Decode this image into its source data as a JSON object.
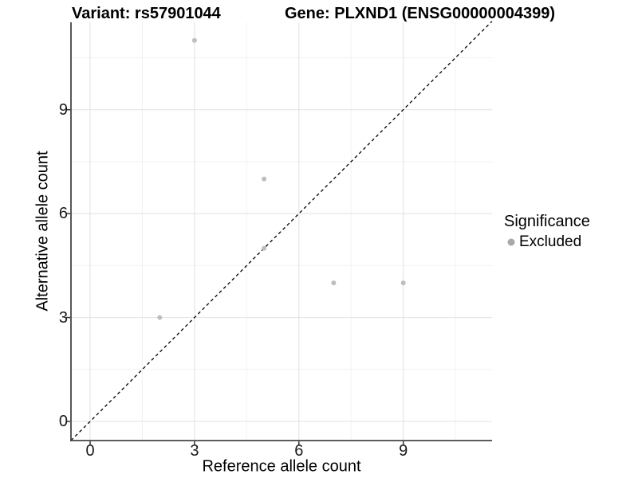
{
  "header": {
    "variant_title": "Variant: rs57901044",
    "gene_title": "Gene: PLXND1 (ENSG00000004399)"
  },
  "axes": {
    "x": {
      "label": "Reference allele count"
    },
    "y": {
      "label": "Alternative allele count"
    }
  },
  "legend": {
    "title": "Significance",
    "position": "right",
    "items": [
      {
        "label": "Excluded",
        "marker_color": "#a9a9a9",
        "marker": "circle"
      }
    ]
  },
  "colors": {
    "background": "#ffffff",
    "point": "#bebebe",
    "major_grid": "#e6e6e6",
    "minor_grid": "#f2f2f2",
    "axis_line": "#454545",
    "tick_mark": "#333333",
    "diagonal_line": "#000000",
    "text": "#000000"
  },
  "chart_data": {
    "type": "scatter",
    "title": "Variant: rs57901044    Gene: PLXND1 (ENSG00000004399)",
    "xlabel": "Reference allele count",
    "ylabel": "Alternative allele count",
    "x_ticks": [
      0,
      3,
      6,
      9
    ],
    "y_ticks": [
      0,
      3,
      6,
      9
    ],
    "x_minor_ticks": [
      1.5,
      4.5,
      7.5,
      10.5
    ],
    "y_minor_ticks": [
      1.5,
      4.5,
      7.5,
      10.5
    ],
    "xlim": [
      -0.55,
      11.55
    ],
    "ylim": [
      -0.55,
      11.55
    ],
    "grid": true,
    "legend_position": "right",
    "series": [
      {
        "name": "Excluded",
        "color": "#bebebe",
        "points": [
          {
            "x": 3,
            "y": 11
          },
          {
            "x": 5,
            "y": 7
          },
          {
            "x": 5,
            "y": 5
          },
          {
            "x": 2,
            "y": 3
          },
          {
            "x": 7,
            "y": 4
          },
          {
            "x": 9,
            "y": 4
          }
        ]
      }
    ],
    "reference_line": {
      "type": "identity",
      "style": "dashed",
      "from": [
        -0.55,
        -0.55
      ],
      "to": [
        11.55,
        11.55
      ]
    }
  }
}
